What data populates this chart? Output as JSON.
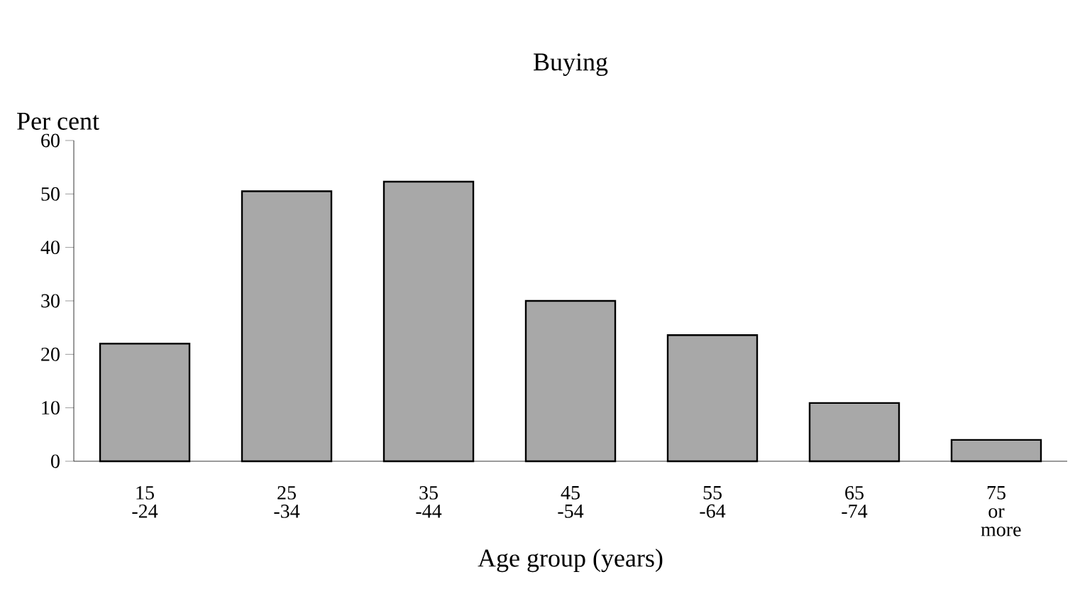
{
  "chart_data": {
    "type": "bar",
    "title": "Buying",
    "ylabel": "Per cent",
    "xlabel": "Age group (years)",
    "categories": [
      "15 -24",
      "25 -34",
      "35 -44",
      "45 -54",
      "55 -64",
      "65 -74",
      "75 or more"
    ],
    "values": [
      22,
      50.5,
      52.3,
      30,
      23.6,
      10.9,
      4
    ],
    "color": "#a8a8a8",
    "ylim": [
      0,
      60
    ],
    "yticks": [
      0,
      10,
      20,
      30,
      40,
      50,
      60
    ],
    "grid": false
  }
}
